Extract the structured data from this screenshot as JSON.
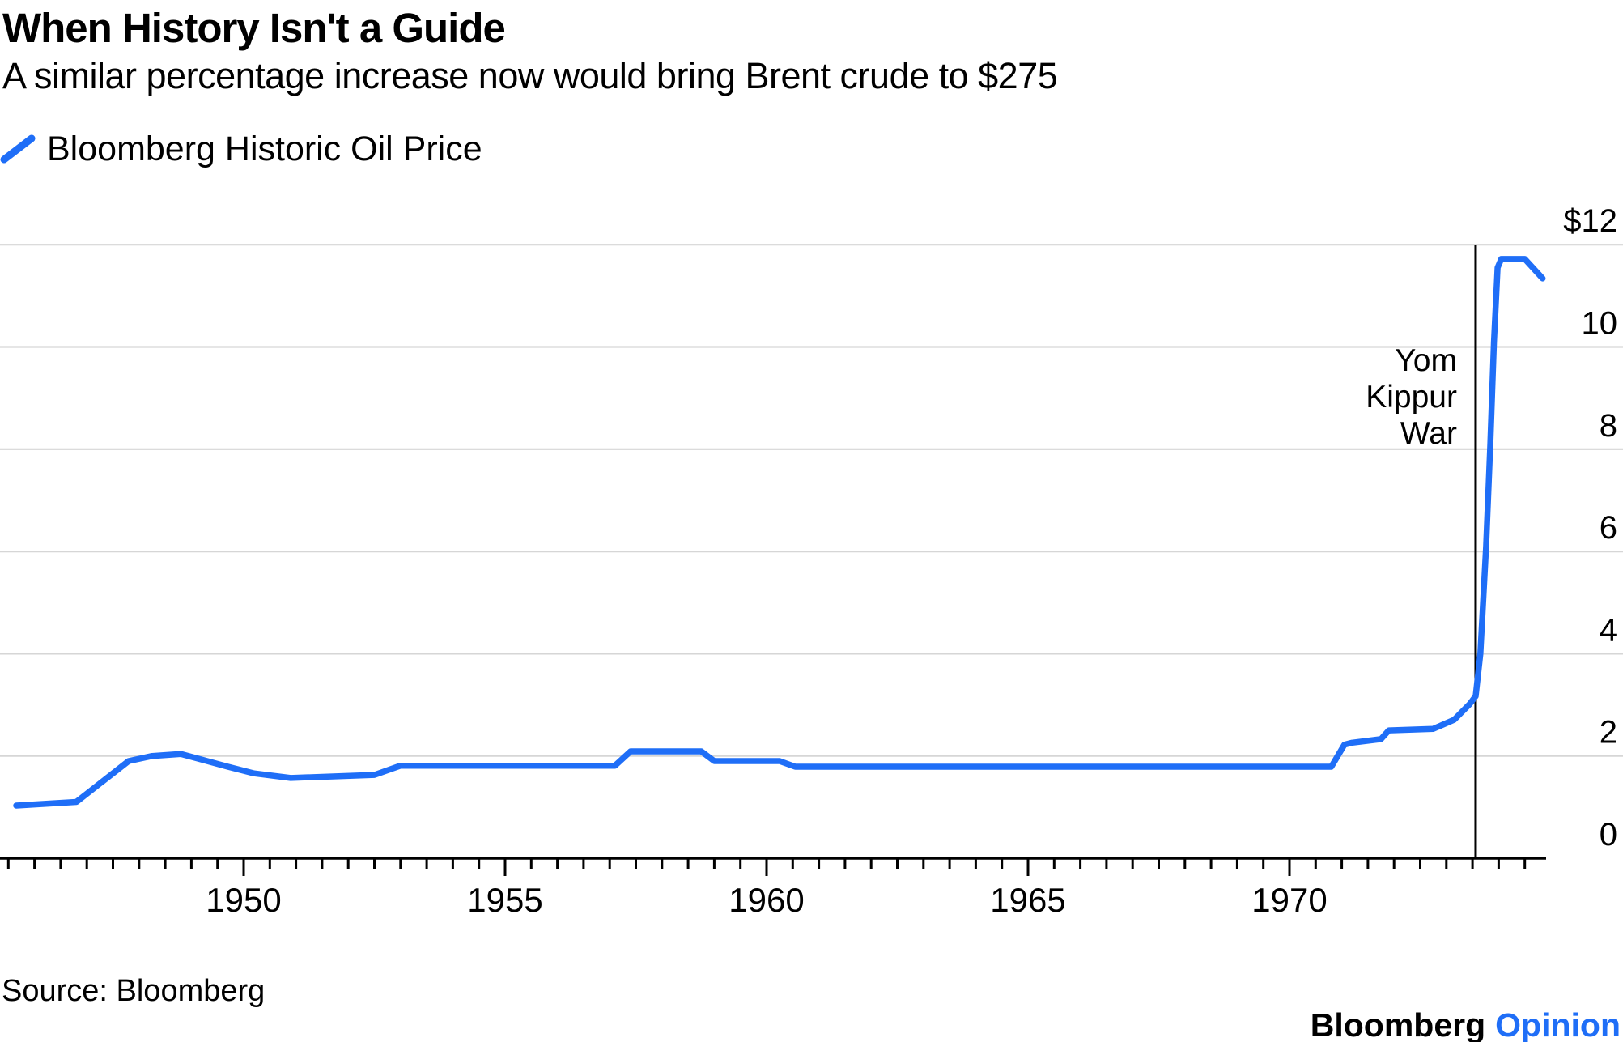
{
  "header": {
    "title": "When History Isn't a Guide",
    "subtitle": "A similar percentage increase now would bring Brent crude to $275"
  },
  "legend": {
    "label": "Bloomberg Historic Oil Price",
    "mark_color": "#1f6ef7"
  },
  "chart_data": {
    "type": "line",
    "title": "Bloomberg Historic Oil Price",
    "unit": "U.S. dollars per barrel",
    "grid": "horizontal",
    "legend_position": "top-left",
    "x_axis": {
      "range": [
        1945.3,
        1974.9
      ],
      "major_ticks": [
        1950,
        1955,
        1960,
        1965,
        1970
      ],
      "major_tick_labels": [
        "1950",
        "1955",
        "1960",
        "1965",
        "1970"
      ],
      "minor_tick_step": 0.5
    },
    "y_axis": {
      "side": "right",
      "range": [
        0,
        12.2
      ],
      "ticks": [
        12,
        10,
        8,
        6,
        4,
        2,
        0
      ],
      "tick_labels": [
        "$12",
        "10",
        "8",
        "6",
        "4",
        "2",
        "0"
      ]
    },
    "annotation": {
      "lines": [
        "Yom",
        "Kippur",
        "War"
      ],
      "x": 1973.56
    },
    "series": [
      {
        "name": "Bloomberg Historic Oil Price",
        "color": "#1f6ef7",
        "points": [
          [
            1945.65,
            1.03
          ],
          [
            1946.8,
            1.1
          ],
          [
            1947.8,
            1.9
          ],
          [
            1948.25,
            2.0
          ],
          [
            1948.8,
            2.04
          ],
          [
            1949.7,
            1.79
          ],
          [
            1950.2,
            1.66
          ],
          [
            1950.9,
            1.57
          ],
          [
            1952.5,
            1.63
          ],
          [
            1953.0,
            1.81
          ],
          [
            1957.1,
            1.81
          ],
          [
            1957.4,
            2.09
          ],
          [
            1958.75,
            2.09
          ],
          [
            1959.0,
            1.9
          ],
          [
            1960.25,
            1.9
          ],
          [
            1960.55,
            1.79
          ],
          [
            1970.8,
            1.79
          ],
          [
            1971.05,
            2.22
          ],
          [
            1971.2,
            2.26
          ],
          [
            1971.75,
            2.33
          ],
          [
            1971.9,
            2.5
          ],
          [
            1972.75,
            2.53
          ],
          [
            1973.15,
            2.71
          ],
          [
            1973.45,
            3.02
          ],
          [
            1973.56,
            3.17
          ],
          [
            1973.65,
            4.0
          ],
          [
            1973.76,
            6.1
          ],
          [
            1973.84,
            8.1
          ],
          [
            1973.91,
            10.1
          ],
          [
            1973.98,
            11.55
          ],
          [
            1974.05,
            11.72
          ],
          [
            1974.5,
            11.72
          ],
          [
            1974.84,
            11.34
          ]
        ]
      }
    ]
  },
  "source": "Source: Bloomberg",
  "footer_logo": {
    "brand": "Bloomberg",
    "suffix": "Opinion",
    "suffix_color": "#1f6ef7"
  }
}
